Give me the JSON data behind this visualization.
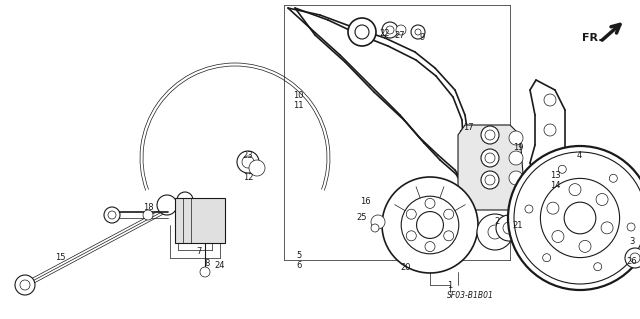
{
  "bg_color": "#ffffff",
  "line_color": "#1a1a1a",
  "figsize": [
    6.4,
    3.19
  ],
  "dpi": 100,
  "diagram_code": "SF03-B1B01",
  "fr_label": "FR.",
  "lw_thin": 0.5,
  "lw_med": 0.8,
  "lw_thick": 1.2,
  "lw_xthick": 1.6
}
